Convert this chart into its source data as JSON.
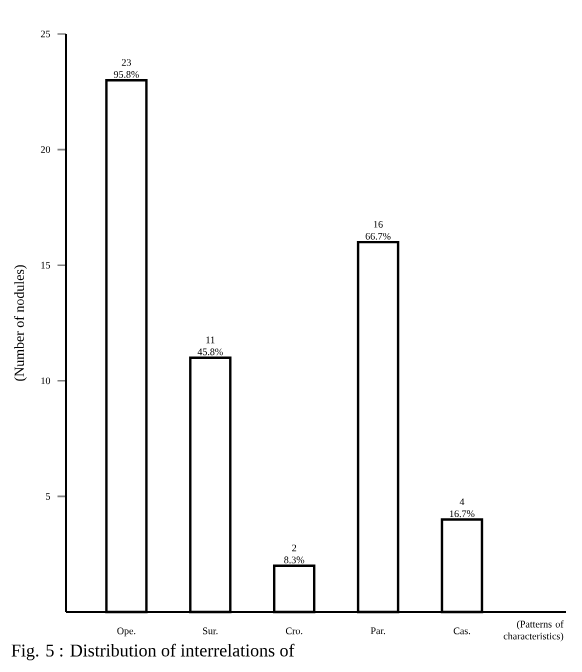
{
  "chart_data": {
    "type": "bar",
    "ylabel": "(Number of nodules)",
    "xlabel": "(Patterns of characteristics)",
    "categories": [
      "Ope.",
      "Sur.",
      "Cro.",
      "Par.",
      "Cas."
    ],
    "values": [
      23,
      11,
      2,
      16,
      4
    ],
    "value_labels": [
      "23 95.8%",
      "11 45.8%",
      "2 8.3%",
      "16 66.7%",
      "4 16.7%"
    ],
    "color": "#ffffff",
    "ylim": [
      0,
      25
    ],
    "yticks": [
      5,
      10,
      15,
      20,
      25
    ],
    "annotations": [
      "Fig. 5 : Distribution of interrelations of"
    ]
  }
}
